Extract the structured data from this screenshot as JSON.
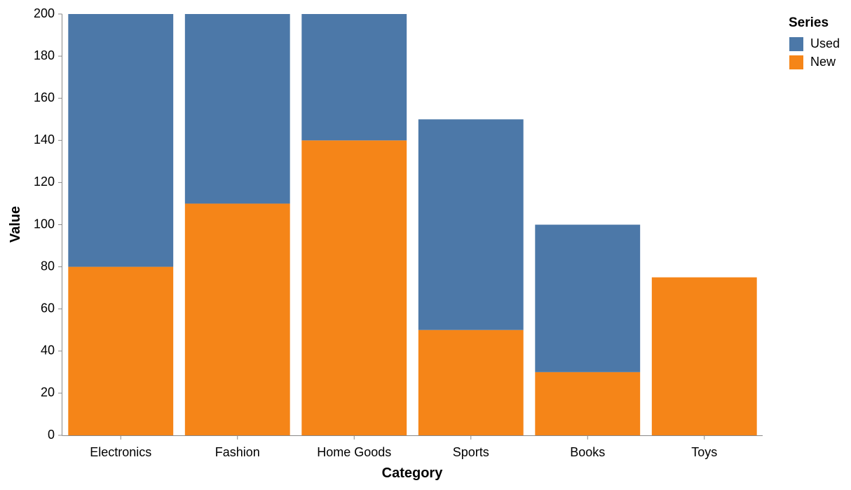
{
  "chart_data": {
    "type": "bar",
    "stacked": true,
    "title": "",
    "xlabel": "Category",
    "ylabel": "Value",
    "categories": [
      "Electronics",
      "Fashion",
      "Home Goods",
      "Sports",
      "Books",
      "Toys"
    ],
    "series": [
      {
        "name": "New",
        "values": [
          80,
          110,
          140,
          50,
          30,
          75
        ],
        "color": "#f58518"
      },
      {
        "name": "Used",
        "values": [
          120,
          90,
          60,
          100,
          70,
          0
        ],
        "color": "#4c78a8"
      }
    ],
    "ylim": [
      0,
      200
    ],
    "yticks": [
      0,
      20,
      40,
      60,
      80,
      100,
      120,
      140,
      160,
      180,
      200
    ],
    "grid": false,
    "legend": {
      "title": "Series",
      "position": "top-right",
      "entries": [
        {
          "label": "Used",
          "color": "#4c78a8"
        },
        {
          "label": "New",
          "color": "#f58518"
        }
      ]
    }
  }
}
